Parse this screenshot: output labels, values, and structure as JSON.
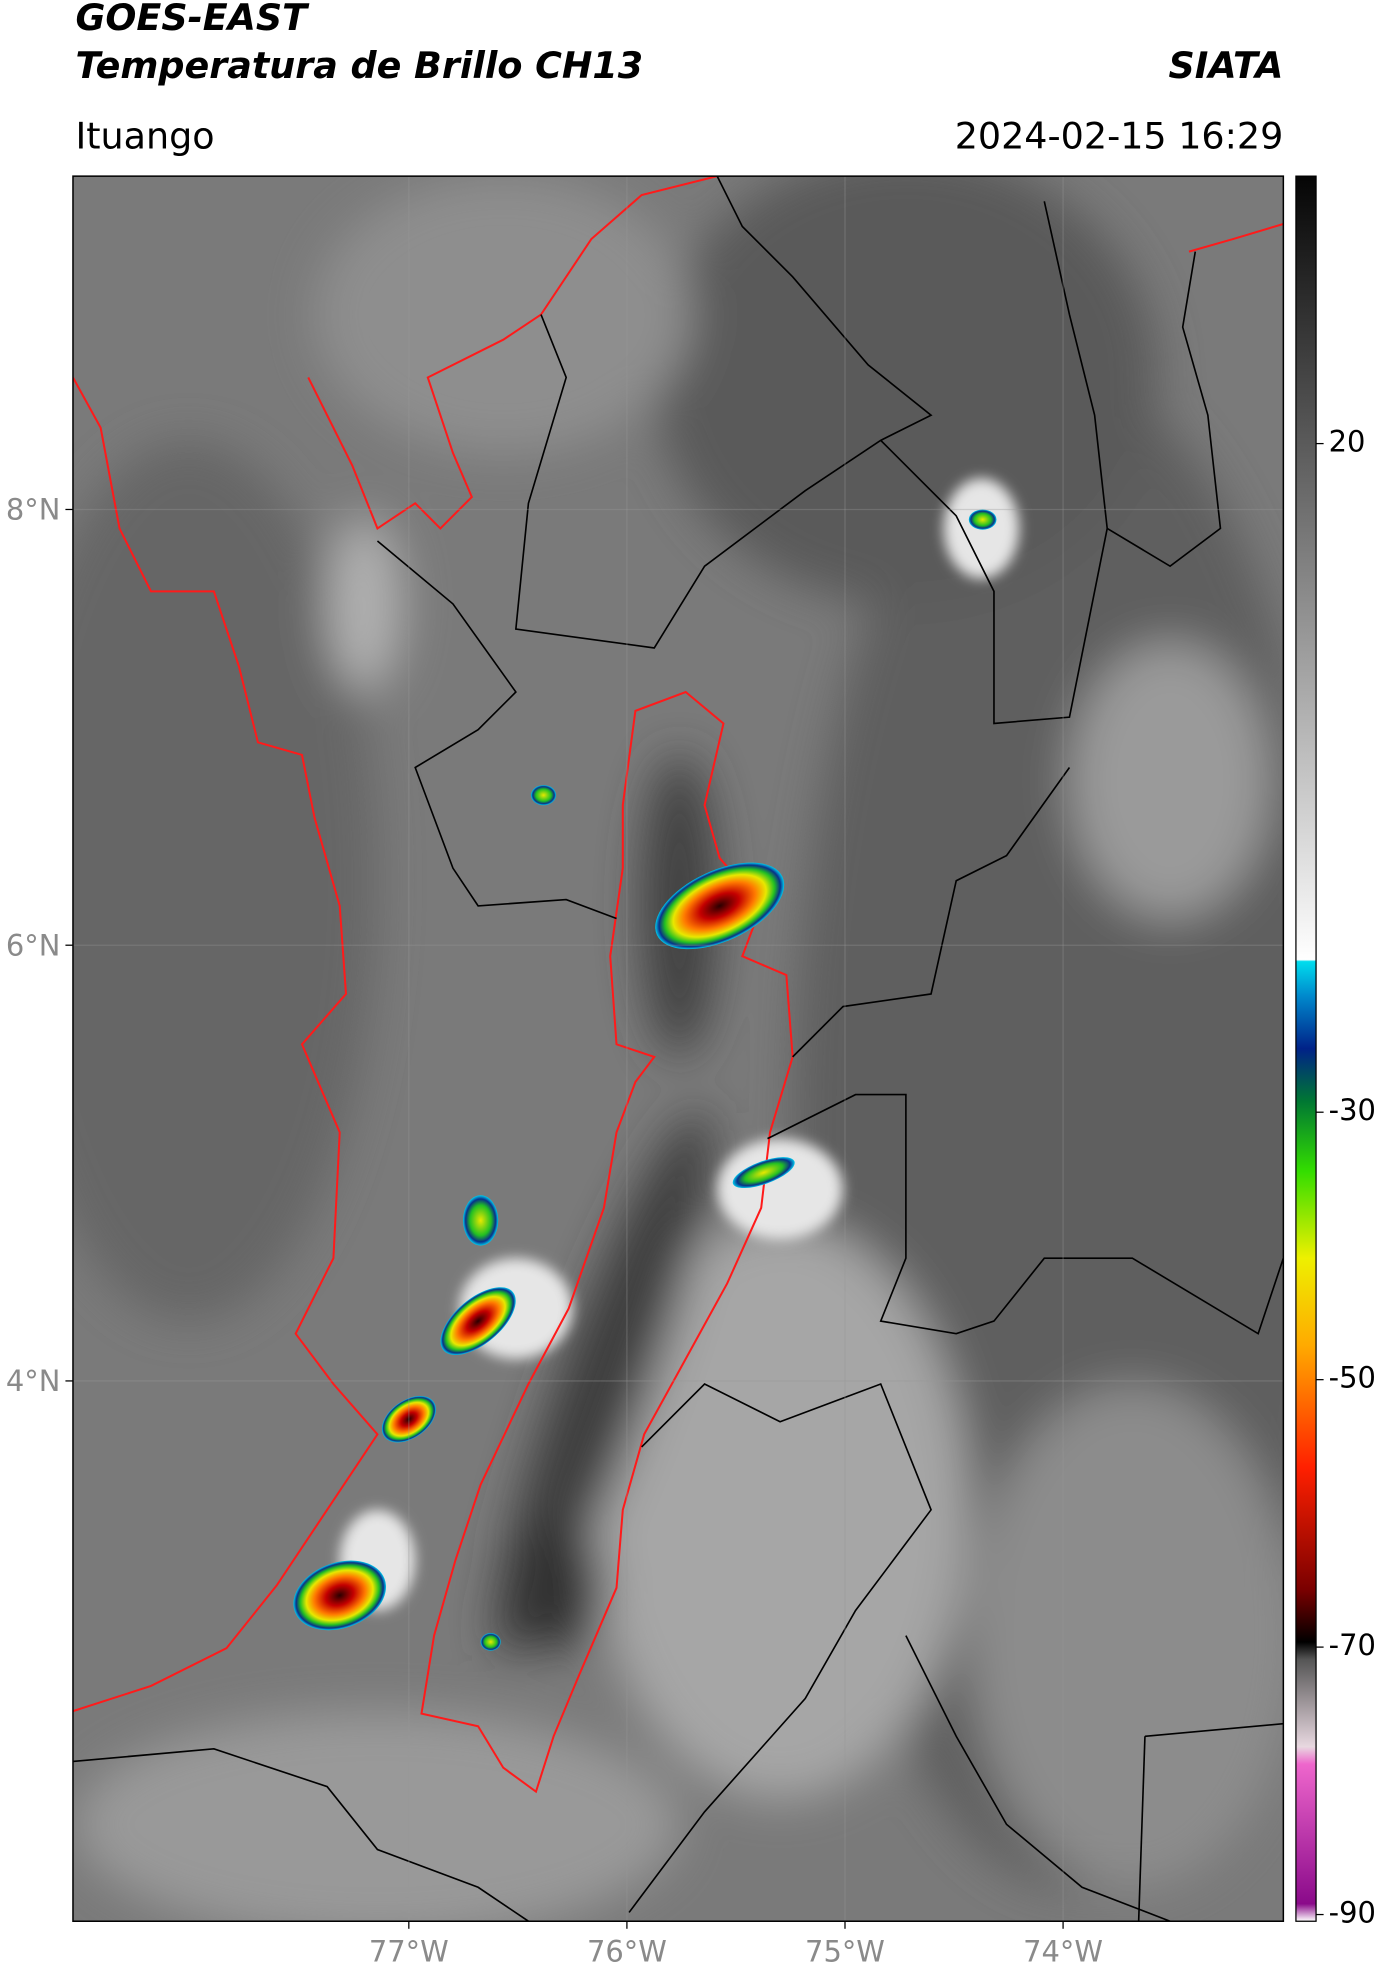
{
  "header": {
    "title": "GOES-EAST",
    "subtitle": "Temperatura de Brillo CH13",
    "source": "SIATA",
    "location": "Ituango",
    "datetime": "2024-02-15 16:29"
  },
  "map": {
    "xlim": [
      -78.54,
      -72.99
    ],
    "ylim": [
      1.52,
      9.53
    ],
    "lon_ticks": [
      {
        "value": -77,
        "label": "77°W"
      },
      {
        "value": -76,
        "label": "76°W"
      },
      {
        "value": -75,
        "label": "75°W"
      },
      {
        "value": -74,
        "label": "74°W"
      }
    ],
    "lat_ticks": [
      {
        "value": 8,
        "label": "8°N"
      },
      {
        "value": 6,
        "label": "6°N"
      },
      {
        "value": 4,
        "label": "4°N"
      }
    ]
  },
  "colorbar": {
    "lim": [
      -90.5,
      40
    ],
    "ticks": [
      20,
      -30,
      -50,
      -70,
      -90
    ]
  }
}
